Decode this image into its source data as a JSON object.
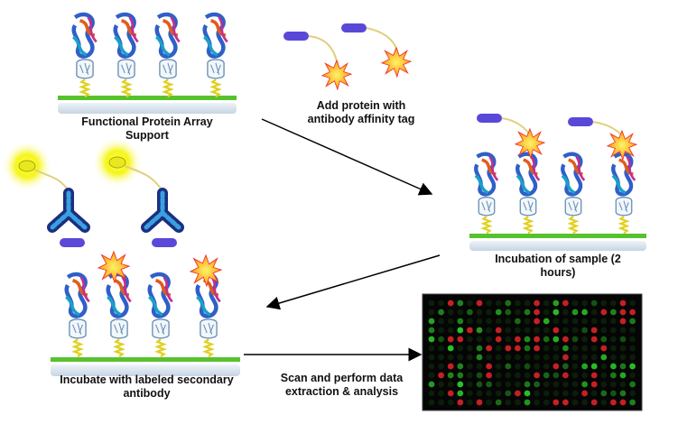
{
  "labels": {
    "functional_array": "Functional Protein Array Support",
    "add_protein": "Add protein with antibody affinity tag",
    "incubation": "Incubation of sample (2 hours)",
    "incubate_secondary": "Incubate with labeled secondary antibody",
    "scan": "Scan and perform data extraction & analysis"
  },
  "colors": {
    "support_bar": "#d8e4ee",
    "surface_line": "#58c22e",
    "linker": "#e0d020",
    "tag": "#5a48d8",
    "star": "#f5a623",
    "glow": "#f4f400",
    "antibody": "#2a4ab0",
    "microarray_bg": "#050505",
    "spot_red": "#e8262a",
    "spot_green": "#2ed32a"
  },
  "icons": [
    "protein-structure-icon",
    "affinity-tag-icon",
    "starburst-icon",
    "fluorescent-label-icon",
    "antibody-icon",
    "microarray-icon",
    "arrow-icon"
  ]
}
